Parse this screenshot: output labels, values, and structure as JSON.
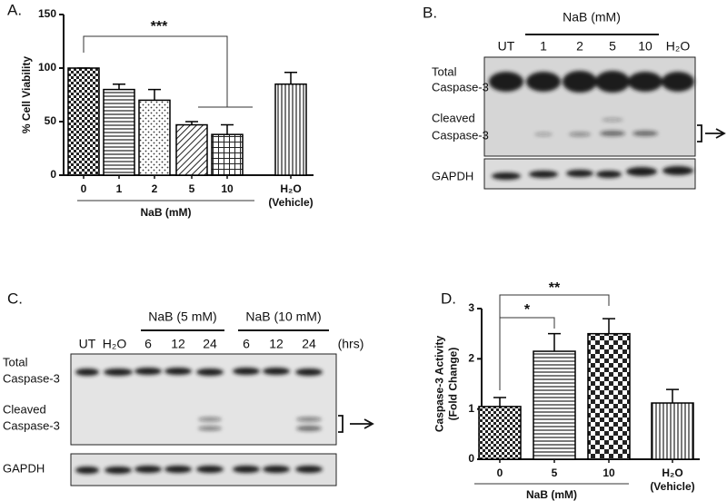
{
  "chart_data": [
    {
      "type": "bar",
      "panel": "A.",
      "ylabel": [
        "% Cell Viability"
      ],
      "categories": [
        "0",
        "1",
        "2",
        "5",
        "10",
        "H₂O"
      ],
      "category_note": "(Vehicle)",
      "group_label": "NaB (mM)",
      "values": [
        100,
        80,
        70,
        47,
        38,
        85
      ],
      "errors": [
        0,
        5,
        10,
        3,
        9,
        11
      ],
      "ylim": [
        0,
        150
      ],
      "yticks": [
        0,
        50,
        100,
        150
      ],
      "annotations": [
        "***"
      ],
      "color": "#000000"
    },
    {
      "type": "bar",
      "panel": "D.",
      "ylabel": [
        "Caspase-3 Activity",
        "(Fold Change)"
      ],
      "categories": [
        "0",
        "5",
        "10",
        "H₂O"
      ],
      "category_note": "(Vehicle)",
      "group_label": "NaB (mM)",
      "values": [
        1.05,
        2.15,
        2.5,
        1.12
      ],
      "errors": [
        0.18,
        0.35,
        0.3,
        0.27
      ],
      "ylim": [
        0,
        3
      ],
      "yticks": [
        0,
        1,
        2,
        3
      ],
      "annotations": [
        "*",
        "**"
      ],
      "color": "#000000"
    }
  ],
  "blots": {
    "B": {
      "panel": "B.",
      "groups": [
        "NaB (mM)"
      ],
      "lanes": [
        "UT",
        "1",
        "2",
        "5",
        "10",
        "H₂O"
      ],
      "rows": [
        [
          "Total",
          "Caspase-3"
        ],
        [
          "Cleaved",
          "Caspase-3"
        ],
        [
          "GAPDH"
        ]
      ]
    },
    "C": {
      "panel": "C.",
      "groups": [
        "NaB (5 mM)",
        "NaB (10 mM)"
      ],
      "lanes": [
        "UT",
        "H₂O",
        "6",
        "12",
        "24",
        "6",
        "12",
        "24"
      ],
      "unit": "(hrs)",
      "rows": [
        [
          "Total",
          "Caspase-3"
        ],
        [
          "Cleaved",
          "Caspase-3"
        ],
        [
          "GAPDH"
        ]
      ]
    }
  }
}
